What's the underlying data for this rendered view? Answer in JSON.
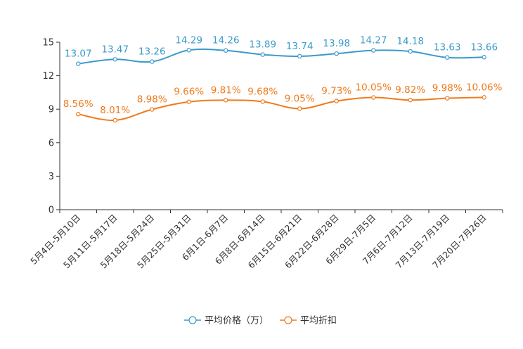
{
  "chart_data": {
    "type": "line",
    "categories": [
      "5月4日-5月10日",
      "5月11日-5月17日",
      "5月18日-5月24日",
      "5月25日-5月31日",
      "6月1日-6月7日",
      "6月8日-6月14日",
      "6月15日-6月21日",
      "6月22日-6月28日",
      "6月29日-7月5日",
      "7月6日-7月12日",
      "7月13日-7月19日",
      "7月20日-7月26日"
    ],
    "ylim": [
      0,
      15
    ],
    "yticks": [
      "0",
      "3",
      "6",
      "9",
      "12",
      "15"
    ],
    "series": [
      {
        "name": "平均价格（万）",
        "color": "#3a9acb",
        "values": [
          13.07,
          13.47,
          13.26,
          14.29,
          14.26,
          13.89,
          13.74,
          13.98,
          14.27,
          14.18,
          13.63,
          13.66
        ],
        "labels": [
          "13.07",
          "13.47",
          "13.26",
          "14.29",
          "14.26",
          "13.89",
          "13.74",
          "13.98",
          "14.27",
          "14.18",
          "13.63",
          "13.66"
        ]
      },
      {
        "name": "平均折扣",
        "color": "#f07a1a",
        "values": [
          8.56,
          8.01,
          8.98,
          9.66,
          9.81,
          9.68,
          9.05,
          9.73,
          10.05,
          9.82,
          9.98,
          10.06
        ],
        "labels": [
          "8.56%",
          "8.01%",
          "8.98%",
          "9.66%",
          "9.81%",
          "9.68%",
          "9.05%",
          "9.73%",
          "10.05%",
          "9.82%",
          "9.98%",
          "10.06%"
        ]
      }
    ],
    "legend_position": "bottom-center"
  }
}
